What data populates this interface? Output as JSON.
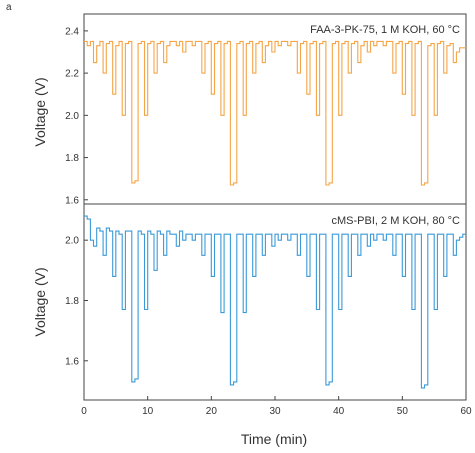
{
  "panel_label": "a",
  "chart_data": {
    "type": "line",
    "shared_x": {
      "xlabel": "Time (min)",
      "xlim": [
        0,
        60
      ],
      "xticks": [
        0,
        10,
        20,
        30,
        40,
        50,
        60
      ],
      "xtick_labels": [
        "0",
        "10",
        "20",
        "30",
        "40",
        "50",
        "60"
      ]
    },
    "panels": [
      {
        "id": "top",
        "annotation": "FAA-3-PK-75, 1 M KOH, 60 °C",
        "ylabel": "Voltage (V)",
        "ylim": [
          1.58,
          2.48
        ],
        "yticks": [
          1.6,
          1.8,
          2.0,
          2.2,
          2.4
        ],
        "ytick_labels": [
          "1.6",
          "1.8",
          "2.0",
          "2.2",
          "2.4"
        ],
        "color": "#f5a546",
        "step_x": [
          0,
          0.5,
          1,
          1.5,
          2,
          2.5,
          3,
          3.5,
          4,
          4.5,
          5,
          5.5,
          6,
          6.5,
          7,
          7.5,
          8,
          8.5,
          9,
          9.5,
          10,
          10.5,
          11,
          11.5,
          12,
          12.5,
          13,
          13.5,
          14,
          14.5,
          15,
          15.5,
          16,
          16.5,
          17,
          17.5,
          18,
          18.5,
          19,
          19.5,
          20,
          20.5,
          21,
          21.5,
          22,
          22.5,
          23,
          23.5,
          24,
          24.5,
          25,
          25.5,
          26,
          26.5,
          27,
          27.5,
          28,
          28.5,
          29,
          29.5,
          30,
          30.5,
          31,
          31.5,
          32,
          32.5,
          33,
          33.5,
          34,
          34.5,
          35,
          35.5,
          36,
          36.5,
          37,
          37.5,
          38,
          38.5,
          39,
          39.5,
          40,
          40.5,
          41,
          41.5,
          42,
          42.5,
          43,
          43.5,
          44,
          44.5,
          45,
          45.5,
          46,
          46.5,
          47,
          47.5,
          48,
          48.5,
          49,
          49.5,
          50,
          50.5,
          51,
          51.5,
          52,
          52.5,
          53,
          53.5,
          54,
          54.5,
          55,
          55.5,
          56,
          56.5,
          57,
          57.5,
          58,
          58.5,
          59,
          59.5,
          60
        ],
        "step_y": [
          2.35,
          2.33,
          2.35,
          2.25,
          2.33,
          2.35,
          2.2,
          2.34,
          2.35,
          2.1,
          2.33,
          2.35,
          2.0,
          2.34,
          2.35,
          1.68,
          1.69,
          2.34,
          2.35,
          2.0,
          2.34,
          2.35,
          2.2,
          2.34,
          2.35,
          2.25,
          2.33,
          2.35,
          2.35,
          2.33,
          2.35,
          2.3,
          2.35,
          2.35,
          2.33,
          2.35,
          2.35,
          2.2,
          2.34,
          2.35,
          2.1,
          2.34,
          2.35,
          2.0,
          2.34,
          2.35,
          1.67,
          1.68,
          2.34,
          2.35,
          2.0,
          2.34,
          2.35,
          2.2,
          2.34,
          2.35,
          2.25,
          2.33,
          2.35,
          2.3,
          2.35,
          2.33,
          2.35,
          2.35,
          2.33,
          2.35,
          2.35,
          2.2,
          2.34,
          2.35,
          2.1,
          2.34,
          2.35,
          2.0,
          2.34,
          2.35,
          1.67,
          1.68,
          2.34,
          2.35,
          2.0,
          2.34,
          2.35,
          2.2,
          2.34,
          2.35,
          2.25,
          2.33,
          2.35,
          2.3,
          2.35,
          2.33,
          2.35,
          2.35,
          2.33,
          2.35,
          2.35,
          2.2,
          2.34,
          2.35,
          2.1,
          2.34,
          2.35,
          2.0,
          2.34,
          2.35,
          1.67,
          1.68,
          2.33,
          2.34,
          2.0,
          2.34,
          2.35,
          2.2,
          2.33,
          2.34,
          2.25,
          2.3,
          2.32,
          2.32
        ]
      },
      {
        "id": "bottom",
        "annotation": "cMS-PBI, 2 M KOH, 80 °C",
        "ylabel": "Voltage (V)",
        "ylim": [
          1.47,
          2.12
        ],
        "yticks": [
          1.6,
          1.8,
          2.0
        ],
        "ytick_labels": [
          "1.6",
          "1.8",
          "2.0"
        ],
        "color": "#3a9ad9",
        "step_x": [
          0,
          0.5,
          1,
          1.5,
          2,
          2.5,
          3,
          3.5,
          4,
          4.5,
          5,
          5.5,
          6,
          6.5,
          7,
          7.5,
          8,
          8.5,
          9,
          9.5,
          10,
          10.5,
          11,
          11.5,
          12,
          12.5,
          13,
          13.5,
          14,
          14.5,
          15,
          15.5,
          16,
          16.5,
          17,
          17.5,
          18,
          18.5,
          19,
          19.5,
          20,
          20.5,
          21,
          21.5,
          22,
          22.5,
          23,
          23.5,
          24,
          24.5,
          25,
          25.5,
          26,
          26.5,
          27,
          27.5,
          28,
          28.5,
          29,
          29.5,
          30,
          30.5,
          31,
          31.5,
          32,
          32.5,
          33,
          33.5,
          34,
          34.5,
          35,
          35.5,
          36,
          36.5,
          37,
          37.5,
          38,
          38.5,
          39,
          39.5,
          40,
          40.5,
          41,
          41.5,
          42,
          42.5,
          43,
          43.5,
          44,
          44.5,
          45,
          45.5,
          46,
          46.5,
          47,
          47.5,
          48,
          48.5,
          49,
          49.5,
          50,
          50.5,
          51,
          51.5,
          52,
          52.5,
          53,
          53.5,
          54,
          54.5,
          55,
          55.5,
          56,
          56.5,
          57,
          57.5,
          58,
          58.5,
          59,
          59.5,
          60
        ],
        "step_y": [
          2.08,
          2.07,
          2.0,
          1.98,
          2.04,
          2.03,
          1.95,
          2.04,
          2.03,
          1.88,
          2.03,
          2.02,
          1.77,
          2.03,
          2.03,
          1.53,
          1.54,
          2.03,
          2.02,
          1.77,
          2.03,
          2.02,
          1.9,
          2.03,
          2.02,
          1.95,
          2.03,
          2.02,
          2.02,
          1.98,
          2.03,
          2.0,
          2.02,
          2.02,
          2.0,
          2.02,
          2.02,
          1.95,
          2.02,
          2.02,
          1.88,
          2.02,
          2.02,
          1.76,
          2.02,
          2.02,
          1.52,
          1.53,
          2.02,
          2.02,
          1.76,
          2.02,
          2.02,
          1.88,
          2.02,
          2.02,
          1.95,
          2.02,
          2.02,
          1.98,
          2.02,
          2.0,
          2.02,
          2.02,
          2.0,
          2.02,
          2.02,
          1.95,
          2.02,
          2.02,
          1.88,
          2.02,
          2.02,
          1.77,
          2.02,
          2.02,
          1.52,
          1.53,
          2.02,
          2.02,
          1.77,
          2.02,
          2.02,
          1.88,
          2.02,
          2.02,
          1.95,
          2.02,
          2.02,
          1.98,
          2.02,
          2.0,
          2.02,
          2.02,
          2.0,
          2.02,
          2.02,
          1.95,
          2.02,
          2.02,
          1.88,
          2.02,
          2.02,
          1.77,
          2.02,
          2.02,
          1.51,
          1.52,
          2.02,
          2.02,
          1.77,
          2.02,
          2.02,
          1.88,
          2.02,
          2.02,
          1.95,
          2.0,
          2.01,
          2.02
        ]
      }
    ]
  }
}
